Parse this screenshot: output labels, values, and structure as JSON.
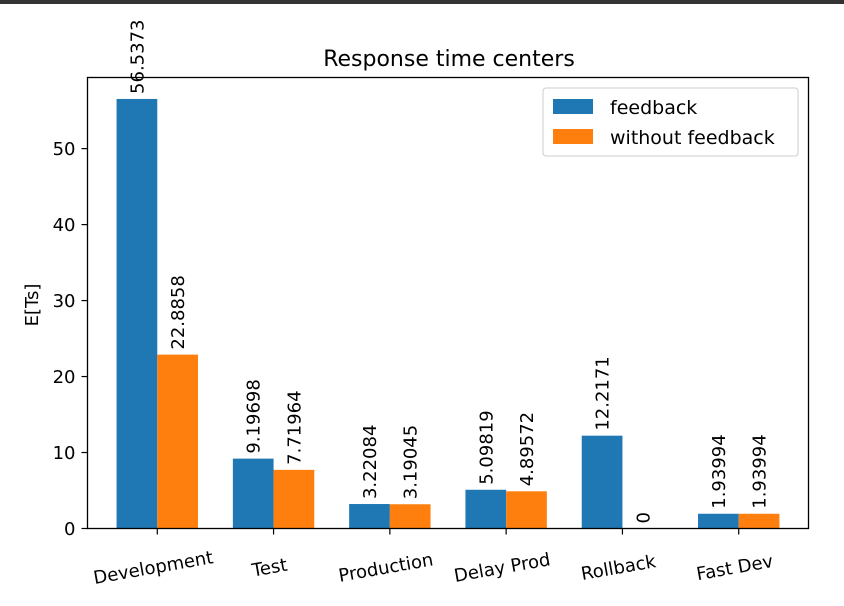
{
  "chart_data": {
    "type": "bar",
    "title": "Response time centers",
    "xlabel": "",
    "ylabel": "E[Ts]",
    "categories": [
      "Development",
      "Test",
      "Production",
      "Delay Prod",
      "Rollback",
      "Fast Dev"
    ],
    "series": [
      {
        "name": "feedback",
        "color": "#1f77b4",
        "values": [
          56.5373,
          9.19698,
          3.22084,
          5.09819,
          12.2171,
          1.93994
        ],
        "labels": [
          "56.5373",
          "9.19698",
          "3.22084",
          "5.09819",
          "12.2171",
          "1.93994"
        ]
      },
      {
        "name": "without feedback",
        "color": "#ff7f0e",
        "values": [
          22.8858,
          7.71964,
          3.19045,
          4.89572,
          0,
          1.93994
        ],
        "labels": [
          "22.8858",
          "7.71964",
          "3.19045",
          "4.89572",
          "0",
          "1.93994"
        ]
      }
    ],
    "yticks": [
      0,
      10,
      20,
      30,
      40,
      50
    ],
    "ylim": [
      0,
      59.36
    ],
    "legend": "top-right",
    "grid": false
  }
}
